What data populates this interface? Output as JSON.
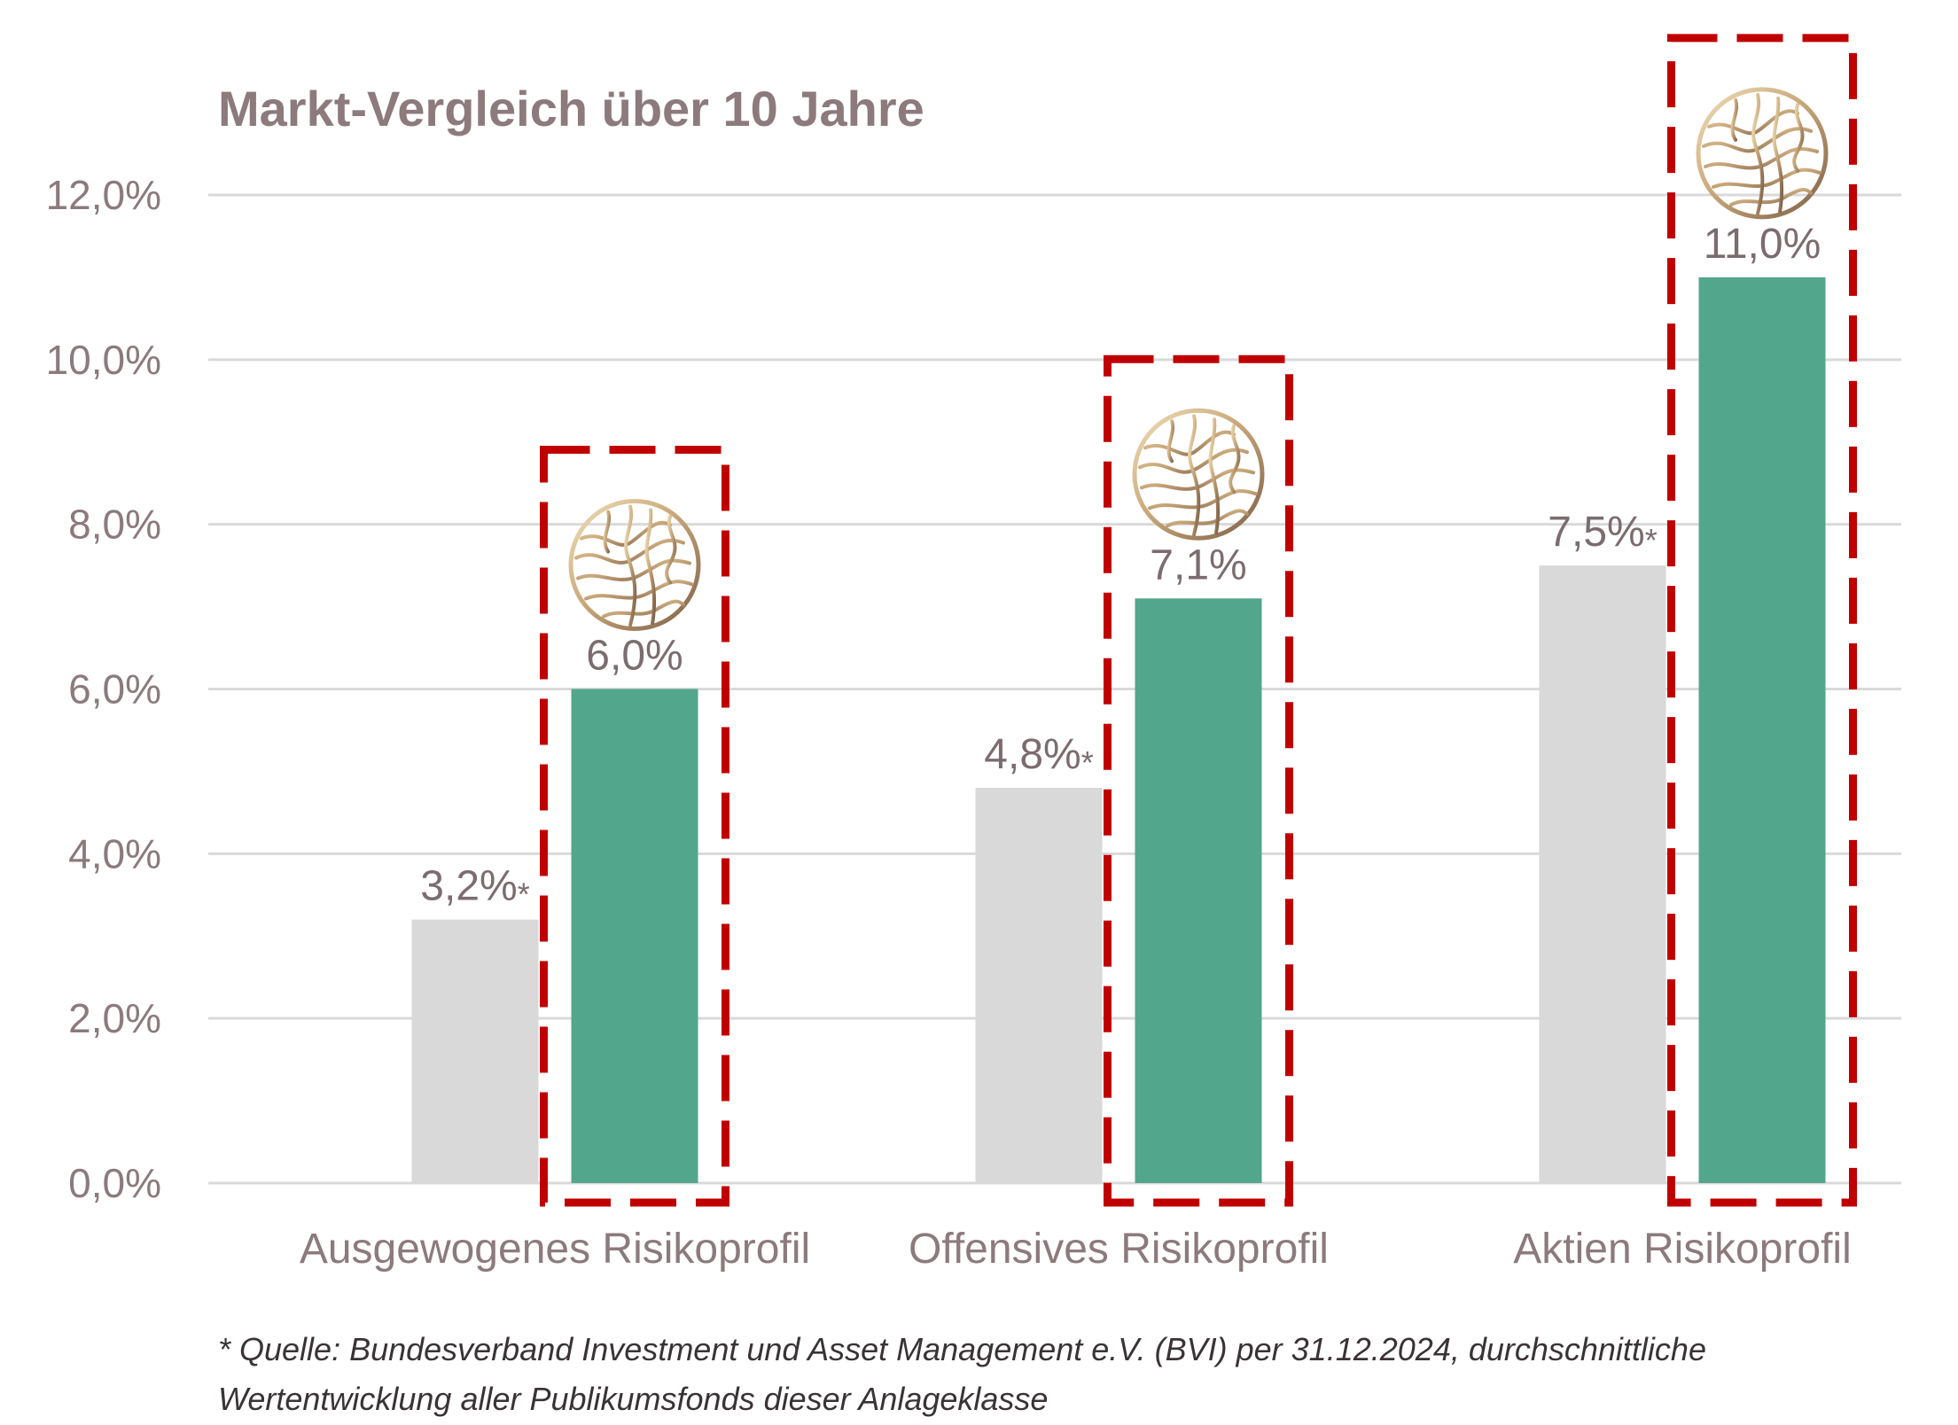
{
  "chart_data": {
    "type": "bar",
    "title": "Markt-Vergleich über 10 Jahre",
    "categories": [
      "Ausgewogenes Risikoprofil",
      "Offensives Risikoprofil",
      "Aktien Risikoprofil"
    ],
    "series": [
      {
        "values": [
          3.2,
          4.8,
          7.5
        ],
        "data_labels": [
          "3,2%",
          "4,8%",
          "7,5%"
        ],
        "label_suffix": "*",
        "color": "#d9d9d9"
      },
      {
        "values": [
          6.0,
          7.1,
          11.0
        ],
        "data_labels": [
          "6,0%",
          "7,1%",
          "11,0%"
        ],
        "color": "#52a68c",
        "highlighted": true,
        "highlight_icon": "tree-ring-logo-icon"
      }
    ],
    "y_ticks": [
      0,
      2,
      4,
      6,
      8,
      10,
      12
    ],
    "y_tick_labels": [
      "0,0%",
      "2,0%",
      "4,0%",
      "6,0%",
      "8,0%",
      "10,0%",
      "12,0%"
    ],
    "ylim": [
      0,
      12
    ],
    "grid": true,
    "legend": "none",
    "highlight_border_color": "#c00000",
    "text_color": "#8c7a7d",
    "gridline_color": "#d9d9d9"
  },
  "footnote": {
    "line1": "* Quelle: Bundesverband Investment und Asset Management e.V. (BVI) per 31.12.2024, durchschnittliche",
    "line2": "Wertentwicklung aller Publikumsfonds dieser Anlageklasse"
  }
}
